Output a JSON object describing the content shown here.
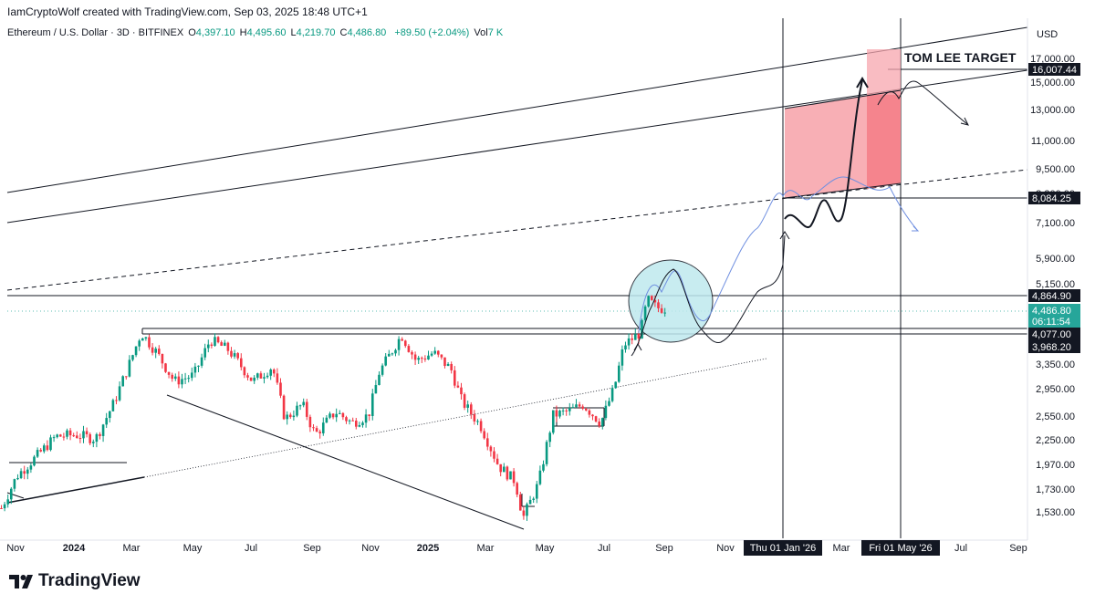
{
  "header": {
    "created_by": "IamCryptoWolf created with TradingView.com, Sep 03, 2025 18:48 UTC+1",
    "symbol": "Ethereum / U.S. Dollar · 3D · BITFINEX",
    "o_label": "O",
    "o_value": "4,397.10",
    "h_label": "H",
    "h_value": "4,495.60",
    "l_label": "L",
    "l_value": "4,219.70",
    "c_label": "C",
    "c_value": "4,486.80",
    "change": "+89.50 (+2.04%)",
    "vol_label": "Vol",
    "vol_value": "7 K"
  },
  "footer": {
    "brand": "TradingView"
  },
  "colors": {
    "up": "#089981",
    "down": "#f23645",
    "zone": "#f7a6ad",
    "zone_dark": "#f47f88",
    "ellipse": "#bfe9ee",
    "price_label": "#26a69a",
    "path_blue": "#6f8fe0"
  },
  "chart_data": {
    "type": "candlestick",
    "currency_label": "USD",
    "y_ticks": [
      "17,000.00",
      "15,000.00",
      "13,000.00",
      "11,000.00",
      "9,500.00",
      "8,300.00",
      "7,100.00",
      "5,900.00",
      "5,150.00",
      "3,350.00",
      "2,950.00",
      "2,550.00",
      "2,250.00",
      "1,970.00",
      "1,730.00",
      "1,530.00"
    ],
    "x_ticks": [
      "Nov",
      "2024",
      "Mar",
      "May",
      "Jul",
      "Sep",
      "Nov",
      "2025",
      "Mar",
      "May",
      "Jul",
      "Sep",
      "Nov",
      "Mar",
      "Jul",
      "Sep"
    ],
    "x_highlight_labels": [
      "Thu 01 Jan '26",
      "Fri 01 May '26"
    ],
    "price_labels": [
      {
        "text": "16,007.44",
        "style": "dark"
      },
      {
        "text": "8,084.25",
        "style": "dark"
      },
      {
        "text": "4,864.90",
        "style": "dark"
      },
      {
        "text": "4,486.80",
        "style": "green"
      },
      {
        "text": "06:11:54",
        "style": "green"
      },
      {
        "text": "4,077.00",
        "style": "dark"
      },
      {
        "text": "3,968.20",
        "style": "dark"
      }
    ],
    "annotation": "TOM LEE TARGET",
    "price_path": [
      [
        "2023-10-20",
        1560
      ],
      [
        "2023-11-05",
        1850
      ],
      [
        "2023-11-25",
        2050
      ],
      [
        "2023-12-15",
        2280
      ],
      [
        "2024-01-05",
        2300
      ],
      [
        "2024-01-25",
        2250
      ],
      [
        "2024-02-12",
        2700
      ],
      [
        "2024-03-01",
        3400
      ],
      [
        "2024-03-12",
        3950
      ],
      [
        "2024-03-28",
        3550
      ],
      [
        "2024-04-15",
        3050
      ],
      [
        "2024-05-05",
        3150
      ],
      [
        "2024-05-22",
        3800
      ],
      [
        "2024-06-10",
        3600
      ],
      [
        "2024-07-05",
        3050
      ],
      [
        "2024-07-25",
        3300
      ],
      [
        "2024-08-07",
        2500
      ],
      [
        "2024-08-25",
        2700
      ],
      [
        "2024-09-07",
        2300
      ],
      [
        "2024-09-28",
        2600
      ],
      [
        "2024-10-15",
        2450
      ],
      [
        "2024-11-01",
        2550
      ],
      [
        "2024-11-12",
        3200
      ],
      [
        "2024-12-05",
        3900
      ],
      [
        "2024-12-20",
        3400
      ],
      [
        "2025-01-07",
        3550
      ],
      [
        "2025-01-25",
        3250
      ],
      [
        "2025-02-05",
        2750
      ],
      [
        "2025-02-25",
        2400
      ],
      [
        "2025-03-15",
        1950
      ],
      [
        "2025-04-01",
        1800
      ],
      [
        "2025-04-09",
        1480
      ],
      [
        "2025-04-25",
        1780
      ],
      [
        "2025-05-10",
        2550
      ],
      [
        "2025-05-25",
        2600
      ],
      [
        "2025-06-10",
        2700
      ],
      [
        "2025-06-28",
        2450
      ],
      [
        "2025-07-12",
        2950
      ],
      [
        "2025-07-22",
        3700
      ],
      [
        "2025-08-08",
        3950
      ],
      [
        "2025-08-15",
        4700
      ],
      [
        "2025-08-25",
        4500
      ],
      [
        "2025-09-03",
        4487
      ]
    ]
  }
}
